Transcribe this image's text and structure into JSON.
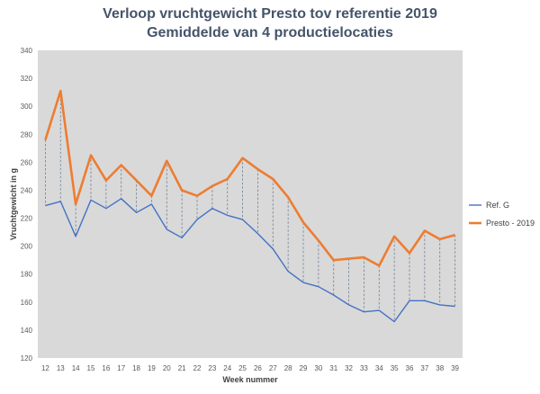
{
  "chart_data": {
    "type": "line",
    "title": "Verloop vruchtgewicht Presto tov referentie 2019",
    "subtitle": "Gemiddelde van 4 productielocaties",
    "xlabel": "Week nummer",
    "ylabel": "Vruchtgewicht in g",
    "ylim": [
      120,
      340
    ],
    "ytick_step": 20,
    "categories": [
      "12",
      "13",
      "14",
      "15",
      "16",
      "17",
      "18",
      "19",
      "20",
      "21",
      "22",
      "23",
      "24",
      "25",
      "26",
      "27",
      "28",
      "29",
      "30",
      "31",
      "32",
      "33",
      "34",
      "35",
      "36",
      "37",
      "38",
      "39"
    ],
    "series": [
      {
        "name": "Ref. G",
        "color": "#4472c4",
        "values": [
          229,
          232,
          207,
          233,
          227,
          234,
          224,
          230,
          212,
          206,
          219,
          227,
          222,
          219,
          209,
          198,
          182,
          174,
          171,
          165,
          158,
          153,
          154,
          146,
          161,
          161,
          158,
          157
        ]
      },
      {
        "name": "Presto - 2019",
        "color": "#ed7d31",
        "values": [
          276,
          311,
          230,
          265,
          247,
          258,
          247,
          236,
          261,
          240,
          236,
          243,
          248,
          263,
          255,
          248,
          235,
          217,
          204,
          190,
          191,
          192,
          186,
          207,
          195,
          211,
          205,
          208
        ]
      }
    ],
    "legend_position": "right",
    "grid": false,
    "drop_lines": true
  }
}
